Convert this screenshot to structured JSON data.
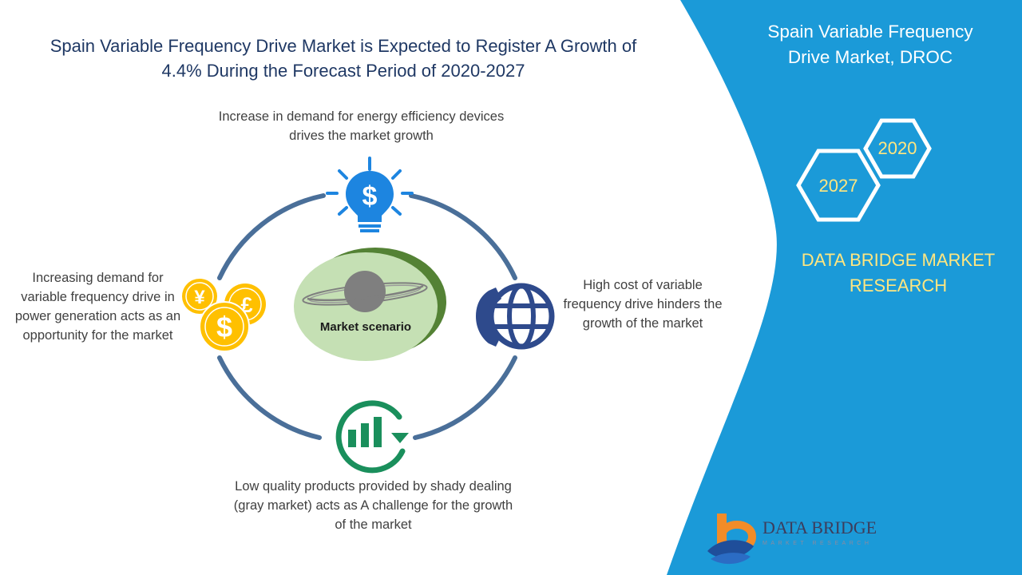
{
  "title": "Spain Variable Frequency Drive Market is Expected to Register A Growth of 4.4% During the Forecast Period of 2020-2027",
  "cycle": {
    "center_label": "Market scenario",
    "drivers": "Increase in demand for energy efficiency devices drives the market growth",
    "restraints": "High cost of variable frequency drive hinders the growth of the market",
    "challenges": "Low quality products provided by shady dealing (gray market) acts as A challenge for the growth of the market",
    "opportunities": "Increasing demand for variable frequency drive in power generation acts as an opportunity for the market"
  },
  "side_panel": {
    "title": "Spain Variable Frequency Drive Market, DROC",
    "year_start": "2020",
    "year_end": "2027",
    "brand": "DATA BRIDGE MARKET RESEARCH"
  },
  "logo": {
    "name": "DATA BRIDGE",
    "sub": "MARKET RESEARCH"
  },
  "colors": {
    "panel_blue": "#1b9ad8",
    "ring": "#4a6f99",
    "title_navy": "#1f3864",
    "center_green": "#c5e0b4",
    "center_shadow": "#548235",
    "icon_blue": "#1d85e0",
    "icon_gold": "#ffc000",
    "icon_navy": "#2e4a8c",
    "icon_green": "#1a8f5c",
    "year_yellow": "#ffe680"
  }
}
